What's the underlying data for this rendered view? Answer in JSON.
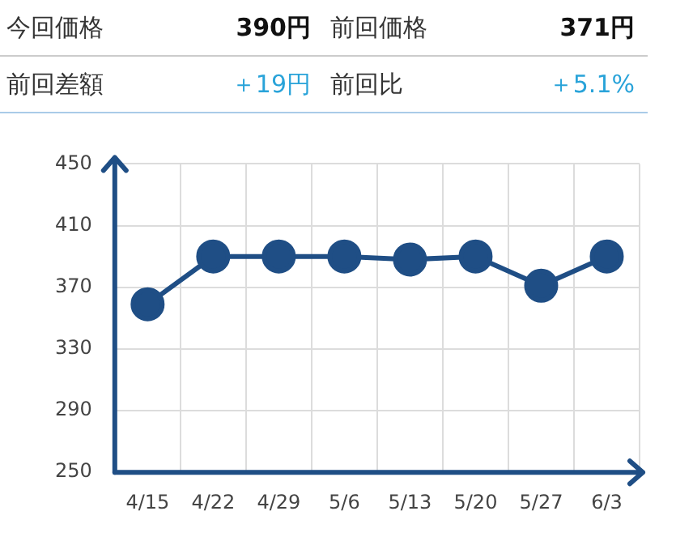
{
  "chart_data": {
    "type": "line",
    "annotations": [
      "今回価格",
      "390円",
      "前回価格",
      "371円",
      "前回差額",
      "＋19円",
      "前回比",
      "＋5.1%"
    ],
    "categories": [
      "4/15",
      "4/22",
      "4/29",
      "5/6",
      "5/13",
      "5/20",
      "5/27",
      "6/3"
    ],
    "series": [
      {
        "color": "#1f4e85",
        "values": [
          359,
          390,
          390,
          390,
          388,
          390,
          371,
          390
        ]
      }
    ],
    "ylim": [
      250,
      450
    ],
    "yticks": [
      250,
      290,
      330,
      370,
      410,
      450
    ],
    "grid": true,
    "marker": "circle",
    "line_style": "solid",
    "legend": false
  }
}
